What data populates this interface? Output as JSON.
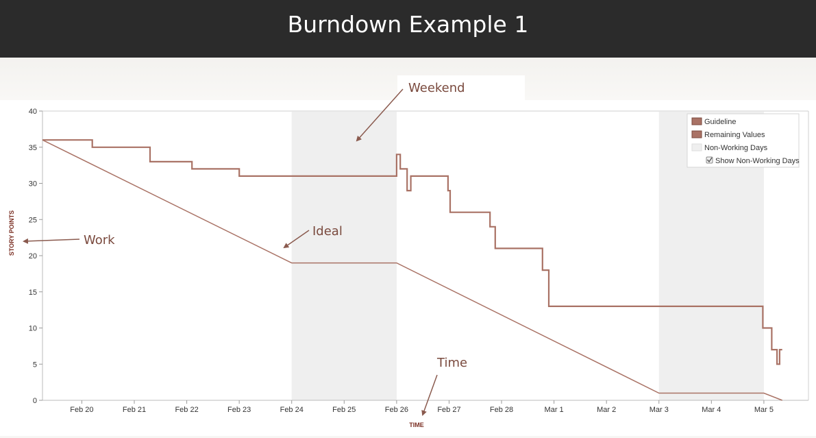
{
  "header": {
    "title": "Burndown Example 1"
  },
  "annotations": {
    "weekend": "Weekend",
    "ideal": "Ideal",
    "work": "Work",
    "time": "Time"
  },
  "legend": {
    "guideline": "Guideline",
    "remaining": "Remaining Values",
    "nonworking": "Non-Working Days",
    "show_nonworking": "Show Non-Working Days"
  },
  "colors": {
    "line": "#a97265",
    "nonworking": "#efefef",
    "header_bg": "#2b2b2b",
    "callout_text": "#7a4a3e",
    "axis_title": "#7a2e22"
  },
  "chart_data": {
    "type": "line",
    "title": "",
    "xlabel": "TIME",
    "ylabel": "STORY POINTS",
    "xlim": [
      -0.75,
      13.85
    ],
    "ylim": [
      0,
      40
    ],
    "yticks": [
      0,
      5,
      10,
      15,
      20,
      25,
      30,
      35,
      40
    ],
    "xtick_labels": [
      "Feb 20",
      "Feb 21",
      "Feb 22",
      "Feb 23",
      "Feb 24",
      "Feb 25",
      "Feb 26",
      "Feb 27",
      "Feb 28",
      "Mar 1",
      "Mar 2",
      "Mar 3",
      "Mar 4",
      "Mar 5"
    ],
    "non_working_days": [
      [
        4,
        6
      ],
      [
        11,
        13
      ]
    ],
    "legend_position": "top-right",
    "grid": false,
    "series": [
      {
        "name": "Guideline",
        "x": [
          -0.75,
          4,
          6,
          11,
          13,
          13.35
        ],
        "y": [
          36,
          19,
          19,
          1,
          1,
          0
        ]
      },
      {
        "name": "Remaining Values",
        "step": true,
        "x": [
          -0.75,
          0.2,
          0.2,
          1.3,
          1.3,
          2.1,
          2.1,
          3.0,
          3.0,
          6.0,
          6.0,
          6.07,
          6.07,
          6.2,
          6.2,
          6.27,
          6.27,
          6.35,
          6.35,
          6.98,
          6.98,
          7.02,
          7.02,
          7.78,
          7.78,
          7.88,
          7.88,
          8.78,
          8.78,
          8.9,
          8.9,
          12.98,
          12.98,
          13.15,
          13.15,
          13.25,
          13.25,
          13.3,
          13.3,
          13.35
        ],
        "y": [
          36,
          36,
          35,
          35,
          33,
          33,
          32,
          32,
          31,
          31,
          34,
          34,
          32,
          32,
          29,
          29,
          31,
          31,
          31,
          31,
          29,
          29,
          26,
          26,
          24,
          24,
          21,
          21,
          18,
          18,
          13,
          13,
          10,
          10,
          7,
          7,
          5,
          5,
          7,
          7
        ]
      }
    ]
  }
}
